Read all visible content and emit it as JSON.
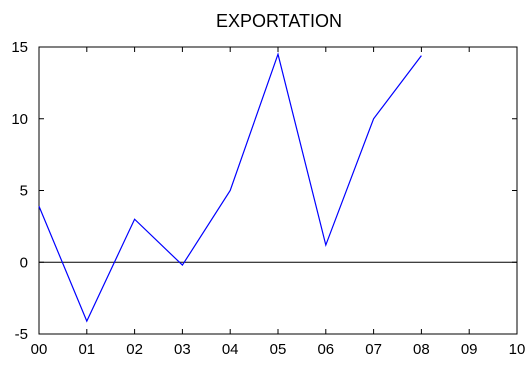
{
  "chart_data": {
    "type": "line",
    "title": "EXPORTATION",
    "xlabel": "",
    "ylabel": "",
    "x_ticks": [
      "00",
      "01",
      "02",
      "03",
      "04",
      "05",
      "06",
      "07",
      "08",
      "09",
      "10"
    ],
    "y_ticks": [
      -5,
      0,
      5,
      10,
      15
    ],
    "xlim": [
      0,
      10
    ],
    "ylim": [
      -5,
      15
    ],
    "grid": false,
    "zero_line": true,
    "series": [
      {
        "color": "#0000ff",
        "x": [
          "00",
          "01",
          "02",
          "03",
          "04",
          "05",
          "06",
          "07",
          "08"
        ],
        "values": [
          3.9,
          -4.1,
          3.0,
          -0.2,
          5.0,
          14.5,
          1.2,
          10.0,
          14.4
        ]
      }
    ],
    "colors": {
      "series": "#0000ff",
      "zero_line": "#000000",
      "frame": "#000000"
    }
  }
}
